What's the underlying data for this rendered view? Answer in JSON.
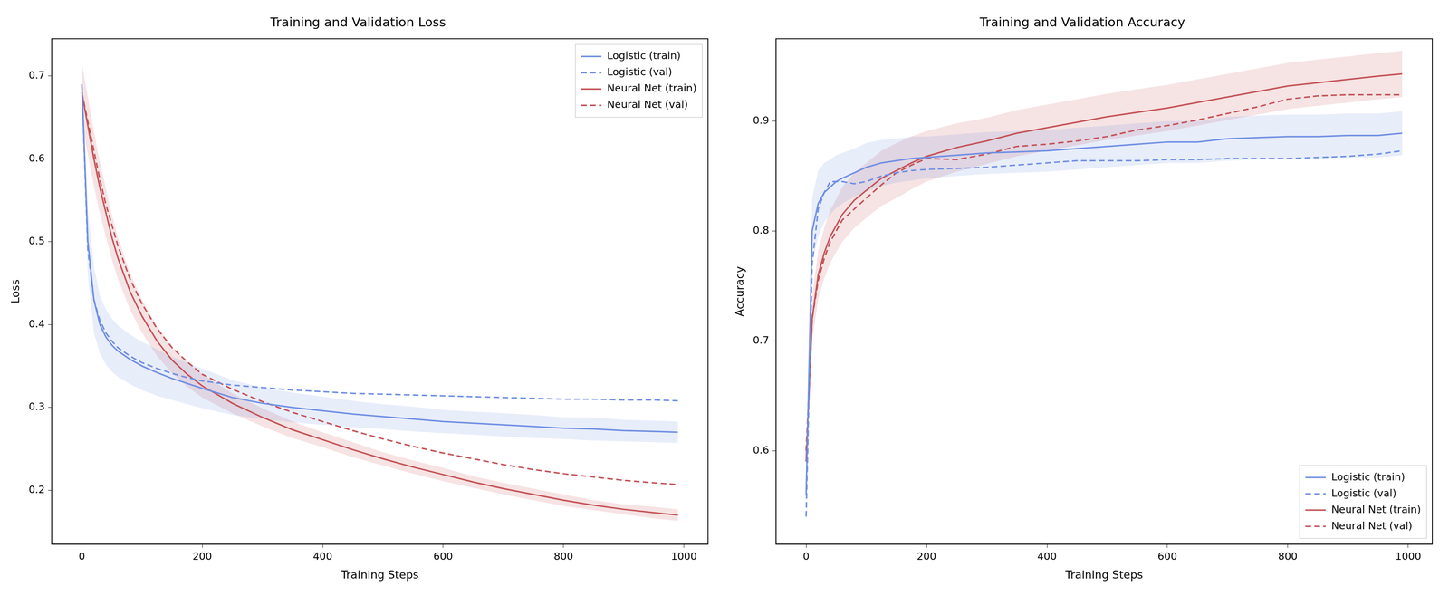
{
  "chart_data": [
    {
      "type": "line",
      "title": "Training and Validation Loss",
      "x_label": "Training Steps",
      "y_label": "Loss",
      "x": [
        0,
        10,
        20,
        30,
        40,
        50,
        60,
        80,
        100,
        125,
        150,
        175,
        200,
        250,
        300,
        350,
        400,
        450,
        500,
        550,
        600,
        650,
        700,
        750,
        800,
        850,
        900,
        950,
        990
      ],
      "xlim": [
        -50,
        1040
      ],
      "xticks": [
        0,
        200,
        400,
        600,
        800,
        1000
      ],
      "ylim": [
        0.135,
        0.745
      ],
      "yticks": [
        0.2,
        0.3,
        0.4,
        0.5,
        0.6,
        0.7
      ],
      "grid": false,
      "legend": "upper right",
      "series": [
        {
          "name": "Logistic (train)",
          "color": "#6f8fe3",
          "line_style": "solid",
          "values": [
            0.69,
            0.5,
            0.43,
            0.4,
            0.385,
            0.375,
            0.368,
            0.358,
            0.35,
            0.342,
            0.335,
            0.329,
            0.323,
            0.312,
            0.305,
            0.3,
            0.296,
            0.292,
            0.289,
            0.286,
            0.283,
            0.281,
            0.279,
            0.277,
            0.275,
            0.274,
            0.272,
            0.271,
            0.27
          ],
          "band_lower": [
            0.67,
            0.46,
            0.39,
            0.365,
            0.352,
            0.343,
            0.337,
            0.328,
            0.321,
            0.314,
            0.309,
            0.304,
            0.299,
            0.291,
            0.286,
            0.282,
            0.279,
            0.276,
            0.274,
            0.271,
            0.269,
            0.267,
            0.265,
            0.263,
            0.262,
            0.26,
            0.259,
            0.258,
            0.257
          ],
          "band_upper": [
            0.71,
            0.54,
            0.47,
            0.435,
            0.418,
            0.407,
            0.399,
            0.388,
            0.379,
            0.37,
            0.361,
            0.354,
            0.347,
            0.333,
            0.324,
            0.318,
            0.313,
            0.308,
            0.304,
            0.301,
            0.297,
            0.295,
            0.293,
            0.291,
            0.288,
            0.288,
            0.285,
            0.284,
            0.283
          ]
        },
        {
          "name": "Logistic (val)",
          "color": "#6f8fe3",
          "line_style": "dashed",
          "values": [
            0.69,
            0.49,
            0.43,
            0.405,
            0.39,
            0.38,
            0.372,
            0.362,
            0.354,
            0.347,
            0.341,
            0.336,
            0.332,
            0.327,
            0.324,
            0.321,
            0.319,
            0.317,
            0.316,
            0.315,
            0.314,
            0.313,
            0.312,
            0.311,
            0.31,
            0.31,
            0.309,
            0.309,
            0.308
          ]
        },
        {
          "name": "Neural Net (train)",
          "color": "#c45256",
          "line_style": "solid",
          "values": [
            0.68,
            0.64,
            0.6,
            0.565,
            0.535,
            0.505,
            0.48,
            0.44,
            0.41,
            0.38,
            0.357,
            0.34,
            0.326,
            0.305,
            0.288,
            0.273,
            0.261,
            0.249,
            0.238,
            0.228,
            0.219,
            0.21,
            0.202,
            0.195,
            0.188,
            0.182,
            0.177,
            0.173,
            0.17
          ],
          "band_lower": [
            0.645,
            0.605,
            0.567,
            0.534,
            0.506,
            0.478,
            0.455,
            0.418,
            0.39,
            0.362,
            0.341,
            0.325,
            0.312,
            0.293,
            0.277,
            0.263,
            0.252,
            0.24,
            0.23,
            0.22,
            0.211,
            0.203,
            0.195,
            0.188,
            0.181,
            0.176,
            0.171,
            0.166,
            0.163
          ],
          "band_upper": [
            0.715,
            0.675,
            0.633,
            0.596,
            0.564,
            0.532,
            0.505,
            0.462,
            0.43,
            0.398,
            0.373,
            0.355,
            0.34,
            0.317,
            0.299,
            0.283,
            0.27,
            0.258,
            0.246,
            0.236,
            0.227,
            0.217,
            0.209,
            0.202,
            0.195,
            0.188,
            0.183,
            0.18,
            0.177
          ]
        },
        {
          "name": "Neural Net (val)",
          "color": "#c45256",
          "line_style": "dashed",
          "values": [
            0.68,
            0.645,
            0.61,
            0.575,
            0.545,
            0.52,
            0.495,
            0.455,
            0.425,
            0.395,
            0.372,
            0.355,
            0.34,
            0.322,
            0.307,
            0.294,
            0.283,
            0.272,
            0.262,
            0.253,
            0.245,
            0.238,
            0.231,
            0.225,
            0.22,
            0.216,
            0.212,
            0.209,
            0.207
          ]
        }
      ]
    },
    {
      "type": "line",
      "title": "Training and Validation Accuracy",
      "x_label": "Training Steps",
      "y_label": "Accuracy",
      "x": [
        0,
        10,
        20,
        30,
        40,
        50,
        60,
        80,
        100,
        125,
        150,
        175,
        200,
        250,
        300,
        350,
        400,
        450,
        500,
        550,
        600,
        650,
        700,
        750,
        800,
        850,
        900,
        950,
        990
      ],
      "xlim": [
        -50,
        1040
      ],
      "xticks": [
        0,
        200,
        400,
        600,
        800,
        1000
      ],
      "ylim": [
        0.515,
        0.975
      ],
      "yticks": [
        0.6,
        0.7,
        0.8,
        0.9
      ],
      "grid": false,
      "legend": "lower right",
      "series": [
        {
          "name": "Logistic (train)",
          "color": "#6f8fe3",
          "line_style": "solid",
          "values": [
            0.56,
            0.8,
            0.825,
            0.835,
            0.84,
            0.845,
            0.848,
            0.853,
            0.858,
            0.862,
            0.864,
            0.866,
            0.867,
            0.869,
            0.871,
            0.872,
            0.873,
            0.875,
            0.877,
            0.879,
            0.881,
            0.881,
            0.884,
            0.885,
            0.886,
            0.886,
            0.887,
            0.887,
            0.889
          ],
          "band_lower": [
            0.55,
            0.77,
            0.795,
            0.808,
            0.815,
            0.821,
            0.825,
            0.831,
            0.836,
            0.841,
            0.844,
            0.846,
            0.848,
            0.85,
            0.852,
            0.853,
            0.854,
            0.856,
            0.858,
            0.86,
            0.862,
            0.862,
            0.864,
            0.865,
            0.866,
            0.866,
            0.867,
            0.867,
            0.869
          ],
          "band_upper": [
            0.57,
            0.83,
            0.855,
            0.862,
            0.865,
            0.869,
            0.871,
            0.875,
            0.88,
            0.883,
            0.884,
            0.886,
            0.886,
            0.888,
            0.89,
            0.891,
            0.892,
            0.894,
            0.896,
            0.898,
            0.9,
            0.9,
            0.904,
            0.905,
            0.906,
            0.906,
            0.907,
            0.907,
            0.909
          ]
        },
        {
          "name": "Logistic (val)",
          "color": "#6f8fe3",
          "line_style": "dashed",
          "values": [
            0.54,
            0.77,
            0.82,
            0.835,
            0.845,
            0.845,
            0.845,
            0.843,
            0.845,
            0.85,
            0.853,
            0.855,
            0.856,
            0.857,
            0.858,
            0.86,
            0.862,
            0.864,
            0.864,
            0.864,
            0.865,
            0.865,
            0.866,
            0.866,
            0.866,
            0.867,
            0.868,
            0.87,
            0.873
          ]
        },
        {
          "name": "Neural Net (train)",
          "color": "#c45256",
          "line_style": "solid",
          "values": [
            0.59,
            0.72,
            0.76,
            0.78,
            0.795,
            0.805,
            0.815,
            0.828,
            0.837,
            0.848,
            0.855,
            0.862,
            0.868,
            0.876,
            0.882,
            0.889,
            0.894,
            0.899,
            0.904,
            0.908,
            0.912,
            0.917,
            0.922,
            0.927,
            0.932,
            0.935,
            0.938,
            0.941,
            0.943
          ],
          "band_lower": [
            0.58,
            0.7,
            0.738,
            0.757,
            0.771,
            0.781,
            0.79,
            0.803,
            0.812,
            0.823,
            0.83,
            0.838,
            0.845,
            0.854,
            0.861,
            0.868,
            0.873,
            0.878,
            0.883,
            0.887,
            0.891,
            0.896,
            0.901,
            0.906,
            0.911,
            0.914,
            0.917,
            0.92,
            0.922
          ],
          "band_upper": [
            0.6,
            0.74,
            0.782,
            0.803,
            0.819,
            0.829,
            0.84,
            0.853,
            0.862,
            0.873,
            0.88,
            0.886,
            0.891,
            0.898,
            0.903,
            0.91,
            0.915,
            0.92,
            0.925,
            0.929,
            0.933,
            0.938,
            0.943,
            0.948,
            0.953,
            0.956,
            0.959,
            0.962,
            0.964
          ]
        },
        {
          "name": "Neural Net (val)",
          "color": "#c45256",
          "line_style": "dashed",
          "values": [
            0.6,
            0.72,
            0.755,
            0.775,
            0.79,
            0.8,
            0.81,
            0.82,
            0.83,
            0.842,
            0.853,
            0.86,
            0.866,
            0.865,
            0.87,
            0.877,
            0.879,
            0.882,
            0.886,
            0.892,
            0.896,
            0.901,
            0.907,
            0.913,
            0.92,
            0.923,
            0.924,
            0.924,
            0.924
          ]
        }
      ]
    }
  ]
}
